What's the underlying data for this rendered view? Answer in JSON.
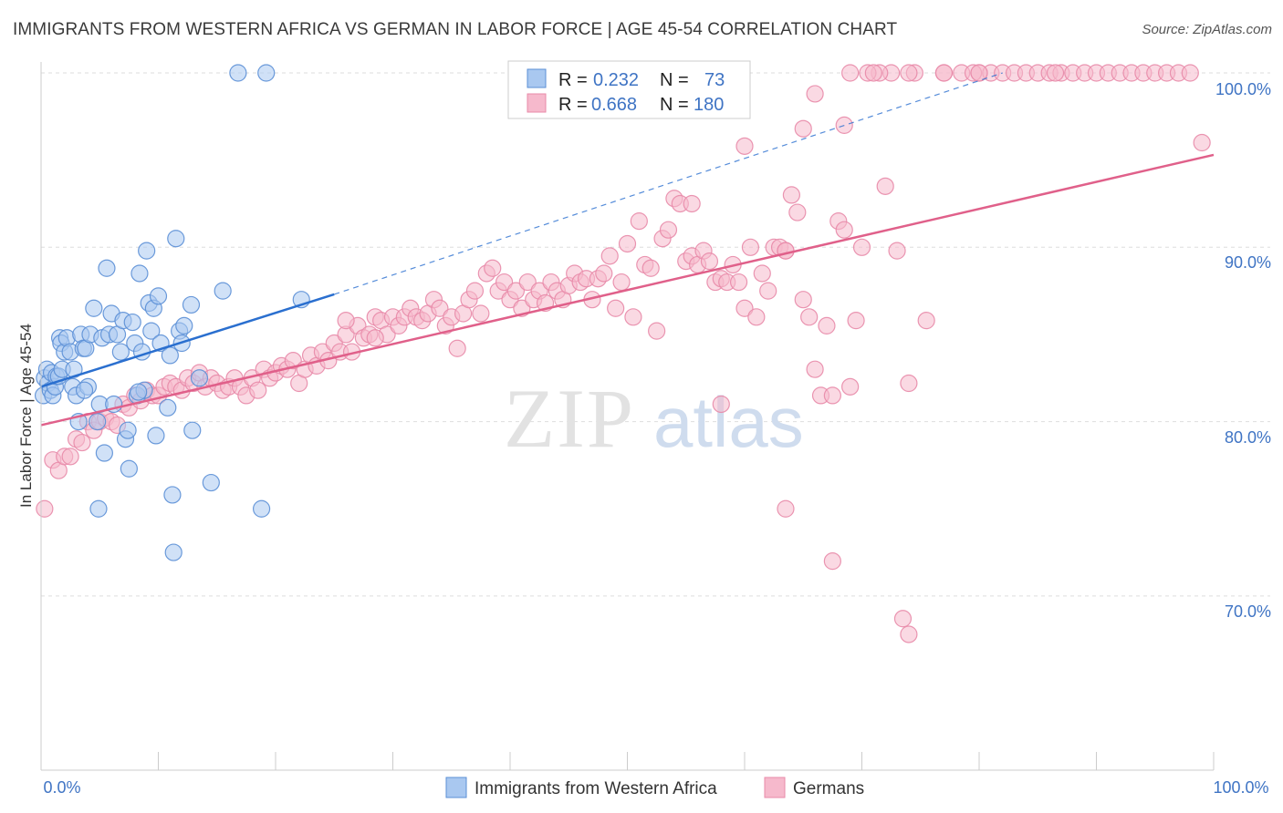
{
  "title": "IMMIGRANTS FROM WESTERN AFRICA VS GERMAN IN LABOR FORCE | AGE 45-54 CORRELATION CHART",
  "source": "Source: ZipAtlas.com",
  "watermark": {
    "zip": "ZIP",
    "atlas": "atlas"
  },
  "colors": {
    "blue_fill": "#a9c8f0",
    "blue_stroke": "#5b8fd6",
    "blue_line": "#2a6fcf",
    "pink_fill": "#f6b9cc",
    "pink_stroke": "#e88aa8",
    "pink_line": "#e0608a",
    "grid": "#dddddd",
    "tick_text": "#3f74c4"
  },
  "chart_data": {
    "type": "scatter",
    "xlabel": "",
    "ylabel": "In Labor Force | Age 45-54",
    "xlim": [
      0,
      100
    ],
    "ylim": [
      60,
      102
    ],
    "x_tick_labels": [
      "0.0%",
      "100.0%"
    ],
    "y_ticks": [
      70,
      80,
      90,
      100
    ],
    "y_tick_labels": [
      "70.0%",
      "80.0%",
      "90.0%",
      "100.0%"
    ],
    "grid": true,
    "legend_position": "top-center",
    "stats": [
      {
        "series": "Immigrants from Western Africa",
        "r_label": "R =",
        "r": "0.232",
        "n_label": "N =",
        "n": "73"
      },
      {
        "series": "Germans",
        "r_label": "R =",
        "r": "0.668",
        "n_label": "N =",
        "n": "180"
      }
    ],
    "series": [
      {
        "name": "Immigrants from Western Africa",
        "color": "blue",
        "trend": {
          "x": [
            0,
            25
          ],
          "y": [
            82.0,
            87.3
          ],
          "dashed_to": [
            82,
            100
          ]
        },
        "points": [
          [
            0.2,
            81.5
          ],
          [
            0.3,
            82.5
          ],
          [
            0.5,
            83.0
          ],
          [
            0.6,
            82.2
          ],
          [
            0.8,
            81.8
          ],
          [
            0.9,
            82.8
          ],
          [
            1.0,
            81.5
          ],
          [
            1.2,
            82.0
          ],
          [
            1.3,
            82.6
          ],
          [
            1.5,
            82.6
          ],
          [
            1.6,
            84.8
          ],
          [
            1.7,
            84.5
          ],
          [
            1.8,
            83.0
          ],
          [
            2.0,
            84.0
          ],
          [
            2.2,
            84.8
          ],
          [
            2.5,
            84.0
          ],
          [
            2.7,
            82.0
          ],
          [
            2.8,
            83.0
          ],
          [
            3.0,
            81.5
          ],
          [
            3.2,
            80.0
          ],
          [
            3.4,
            85.0
          ],
          [
            3.6,
            84.2
          ],
          [
            3.8,
            84.2
          ],
          [
            4.0,
            82.0
          ],
          [
            4.2,
            85.0
          ],
          [
            4.5,
            86.5
          ],
          [
            4.8,
            80.0
          ],
          [
            5.0,
            81.0
          ],
          [
            5.2,
            84.8
          ],
          [
            5.4,
            78.2
          ],
          [
            5.6,
            88.8
          ],
          [
            5.8,
            85.0
          ],
          [
            6.0,
            86.2
          ],
          [
            6.2,
            81.0
          ],
          [
            6.5,
            85.0
          ],
          [
            6.8,
            84.0
          ],
          [
            7.0,
            85.8
          ],
          [
            7.2,
            79.0
          ],
          [
            7.4,
            79.5
          ],
          [
            7.5,
            77.3
          ],
          [
            7.8,
            85.7
          ],
          [
            8.0,
            84.5
          ],
          [
            8.2,
            81.5
          ],
          [
            8.4,
            88.5
          ],
          [
            8.6,
            84.0
          ],
          [
            8.8,
            81.8
          ],
          [
            9.0,
            89.8
          ],
          [
            9.2,
            86.8
          ],
          [
            9.4,
            85.2
          ],
          [
            9.6,
            86.5
          ],
          [
            9.8,
            79.2
          ],
          [
            10.0,
            87.2
          ],
          [
            10.2,
            84.5
          ],
          [
            10.8,
            80.8
          ],
          [
            11.0,
            83.8
          ],
          [
            11.2,
            75.8
          ],
          [
            11.5,
            90.5
          ],
          [
            11.8,
            85.2
          ],
          [
            12.0,
            84.5
          ],
          [
            12.2,
            85.5
          ],
          [
            12.8,
            86.7
          ],
          [
            12.9,
            79.5
          ],
          [
            13.5,
            82.5
          ],
          [
            14.5,
            76.5
          ],
          [
            15.5,
            87.5
          ],
          [
            16.8,
            100.0
          ],
          [
            19.2,
            100.0
          ],
          [
            18.8,
            75.0
          ],
          [
            22.2,
            87.0
          ],
          [
            11.3,
            72.5
          ],
          [
            4.9,
            75.0
          ],
          [
            3.7,
            81.8
          ],
          [
            8.3,
            81.7
          ]
        ]
      },
      {
        "name": "Germans",
        "color": "pink",
        "trend": {
          "x": [
            0,
            100
          ],
          "y": [
            79.8,
            95.3
          ]
        },
        "points": [
          [
            0.3,
            75.0
          ],
          [
            1.0,
            77.8
          ],
          [
            1.5,
            77.2
          ],
          [
            2.0,
            78.0
          ],
          [
            2.5,
            78.0
          ],
          [
            3.0,
            79.0
          ],
          [
            3.5,
            78.8
          ],
          [
            4.0,
            80.0
          ],
          [
            4.5,
            79.5
          ],
          [
            5.0,
            80.0
          ],
          [
            5.5,
            80.2
          ],
          [
            6.0,
            80.0
          ],
          [
            6.5,
            79.8
          ],
          [
            7.0,
            81.0
          ],
          [
            7.5,
            80.8
          ],
          [
            8.0,
            81.5
          ],
          [
            8.5,
            81.2
          ],
          [
            9.0,
            81.8
          ],
          [
            9.5,
            81.5
          ],
          [
            10.0,
            81.5
          ],
          [
            10.5,
            82.0
          ],
          [
            11.0,
            82.2
          ],
          [
            11.5,
            82.0
          ],
          [
            12.0,
            81.8
          ],
          [
            12.5,
            82.5
          ],
          [
            13.0,
            82.2
          ],
          [
            13.5,
            82.8
          ],
          [
            14.0,
            82.0
          ],
          [
            14.5,
            82.5
          ],
          [
            15.0,
            82.2
          ],
          [
            15.5,
            81.8
          ],
          [
            16.0,
            82.0
          ],
          [
            16.5,
            82.5
          ],
          [
            17.0,
            82.0
          ],
          [
            17.5,
            81.5
          ],
          [
            18.0,
            82.5
          ],
          [
            18.5,
            81.8
          ],
          [
            19.0,
            83.0
          ],
          [
            19.5,
            82.5
          ],
          [
            20.0,
            82.8
          ],
          [
            20.5,
            83.2
          ],
          [
            21.0,
            83.0
          ],
          [
            21.5,
            83.5
          ],
          [
            22.0,
            82.2
          ],
          [
            22.5,
            83.0
          ],
          [
            23.0,
            83.8
          ],
          [
            23.5,
            83.2
          ],
          [
            24.0,
            84.0
          ],
          [
            24.5,
            83.5
          ],
          [
            25.0,
            84.5
          ],
          [
            25.5,
            84.0
          ],
          [
            26.0,
            85.0
          ],
          [
            26.5,
            84.0
          ],
          [
            27.0,
            85.5
          ],
          [
            27.5,
            84.8
          ],
          [
            28.0,
            85.0
          ],
          [
            28.5,
            86.0
          ],
          [
            29.0,
            85.8
          ],
          [
            29.5,
            85.0
          ],
          [
            30.0,
            86.0
          ],
          [
            30.5,
            85.5
          ],
          [
            31.0,
            86.0
          ],
          [
            31.5,
            86.5
          ],
          [
            32.0,
            86.0
          ],
          [
            32.5,
            85.8
          ],
          [
            33.0,
            86.2
          ],
          [
            33.5,
            87.0
          ],
          [
            34.0,
            86.5
          ],
          [
            34.5,
            85.5
          ],
          [
            35.0,
            86.0
          ],
          [
            35.5,
            84.2
          ],
          [
            36.0,
            86.2
          ],
          [
            36.5,
            87.0
          ],
          [
            37.0,
            87.5
          ],
          [
            37.5,
            86.2
          ],
          [
            38.0,
            88.5
          ],
          [
            38.5,
            88.8
          ],
          [
            39.0,
            87.5
          ],
          [
            39.5,
            88.0
          ],
          [
            40.0,
            87.0
          ],
          [
            40.5,
            87.5
          ],
          [
            41.0,
            86.5
          ],
          [
            41.5,
            88.0
          ],
          [
            42.0,
            87.0
          ],
          [
            42.5,
            87.5
          ],
          [
            43.0,
            86.8
          ],
          [
            43.5,
            88.0
          ],
          [
            44.0,
            87.5
          ],
          [
            44.5,
            87.0
          ],
          [
            45.0,
            87.8
          ],
          [
            45.5,
            88.5
          ],
          [
            46.0,
            88.0
          ],
          [
            46.5,
            88.2
          ],
          [
            47.0,
            87.0
          ],
          [
            47.5,
            88.2
          ],
          [
            48.0,
            88.5
          ],
          [
            48.5,
            89.5
          ],
          [
            49.0,
            86.5
          ],
          [
            49.5,
            88.0
          ],
          [
            50.0,
            90.2
          ],
          [
            50.5,
            86.0
          ],
          [
            51.0,
            91.5
          ],
          [
            51.5,
            89.0
          ],
          [
            52.0,
            88.8
          ],
          [
            52.5,
            85.2
          ],
          [
            53.0,
            90.5
          ],
          [
            53.5,
            91.0
          ],
          [
            54.0,
            92.8
          ],
          [
            54.5,
            92.5
          ],
          [
            55.0,
            89.2
          ],
          [
            55.5,
            89.5
          ],
          [
            56.0,
            89.0
          ],
          [
            56.5,
            89.8
          ],
          [
            57.0,
            89.2
          ],
          [
            57.5,
            88.0
          ],
          [
            58.0,
            88.2
          ],
          [
            58.5,
            88.0
          ],
          [
            59.0,
            89.0
          ],
          [
            59.5,
            88.0
          ],
          [
            60.0,
            86.5
          ],
          [
            60.5,
            90.0
          ],
          [
            61.0,
            86.0
          ],
          [
            61.5,
            88.5
          ],
          [
            62.0,
            87.5
          ],
          [
            62.5,
            90.0
          ],
          [
            63.0,
            90.0
          ],
          [
            63.5,
            89.8
          ],
          [
            64.0,
            93.0
          ],
          [
            64.5,
            92.0
          ],
          [
            65.0,
            87.0
          ],
          [
            65.5,
            86.0
          ],
          [
            66.0,
            83.0
          ],
          [
            66.5,
            81.5
          ],
          [
            67.0,
            85.5
          ],
          [
            67.5,
            81.5
          ],
          [
            68.0,
            91.5
          ],
          [
            68.5,
            91.0
          ],
          [
            69.0,
            82.0
          ],
          [
            69.5,
            85.8
          ],
          [
            70.0,
            90.0
          ],
          [
            55.5,
            92.5
          ],
          [
            58.0,
            81.0
          ],
          [
            60.0,
            95.8
          ],
          [
            63.5,
            89.8
          ],
          [
            65.0,
            96.8
          ],
          [
            66.0,
            98.8
          ],
          [
            68.5,
            97.0
          ],
          [
            72.0,
            93.5
          ],
          [
            73.0,
            89.8
          ],
          [
            74.0,
            82.2
          ],
          [
            75.5,
            85.8
          ],
          [
            80.0,
            100.0
          ],
          [
            81.0,
            100.0
          ],
          [
            82.0,
            100.0
          ],
          [
            83.0,
            100.0
          ],
          [
            84.0,
            100.0
          ],
          [
            85.0,
            100.0
          ],
          [
            86.0,
            100.0
          ],
          [
            87.0,
            100.0
          ],
          [
            88.0,
            100.0
          ],
          [
            89.0,
            100.0
          ],
          [
            90.0,
            100.0
          ],
          [
            91.0,
            100.0
          ],
          [
            92.0,
            100.0
          ],
          [
            93.0,
            100.0
          ],
          [
            94.0,
            100.0
          ],
          [
            95.0,
            100.0
          ],
          [
            96.0,
            100.0
          ],
          [
            97.0,
            100.0
          ],
          [
            98.0,
            100.0
          ],
          [
            99.0,
            96.0
          ],
          [
            78.5,
            100.0
          ],
          [
            79.5,
            100.0
          ],
          [
            86.5,
            100.0
          ],
          [
            77.0,
            100.0
          ],
          [
            74.5,
            100.0
          ],
          [
            72.5,
            100.0
          ],
          [
            71.5,
            100.0
          ],
          [
            70.5,
            100.0
          ],
          [
            69.0,
            100.0
          ],
          [
            71.0,
            100.0
          ],
          [
            74.0,
            100.0
          ],
          [
            77.0,
            100.0
          ],
          [
            80.0,
            100.0
          ],
          [
            73.5,
            68.7
          ],
          [
            74.0,
            67.8
          ],
          [
            63.5,
            75.0
          ],
          [
            67.5,
            72.0
          ],
          [
            26.0,
            85.8
          ],
          [
            28.5,
            84.8
          ]
        ]
      }
    ]
  },
  "bottom_legend": [
    "Immigrants from Western Africa",
    "Germans"
  ]
}
